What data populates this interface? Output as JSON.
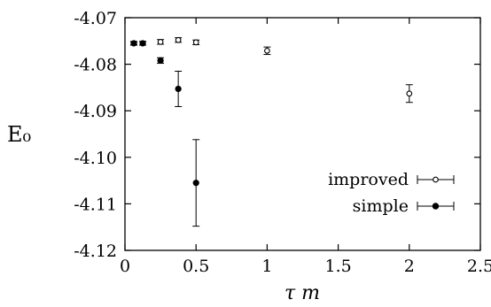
{
  "chart_data": {
    "type": "scatter",
    "xlabel": "τ m",
    "ylabel": "E₀",
    "xlim": [
      0,
      2.5
    ],
    "ylim": [
      -4.12,
      -4.07
    ],
    "x_ticks": [
      0,
      0.5,
      1,
      1.5,
      2,
      2.5
    ],
    "x_tick_labels": [
      "0",
      "0.5",
      "1",
      "1.5",
      "2",
      "2.5"
    ],
    "y_ticks": [
      -4.07,
      -4.08,
      -4.09,
      -4.1,
      -4.11,
      -4.12
    ],
    "y_tick_labels": [
      "-4.07",
      "-4.08",
      "-4.09",
      "-4.10",
      "-4.11",
      "-4.12"
    ],
    "grid": false,
    "legend_position": "bottom-right",
    "series": [
      {
        "name": "improved",
        "marker": "open-circle",
        "points": [
          {
            "x": 0.0625,
            "y": -4.0755,
            "err": 0.0004
          },
          {
            "x": 0.125,
            "y": -4.0755,
            "err": 0.0004
          },
          {
            "x": 0.25,
            "y": -4.0752,
            "err": 0.0005
          },
          {
            "x": 0.375,
            "y": -4.0748,
            "err": 0.0005
          },
          {
            "x": 0.5,
            "y": -4.0753,
            "err": 0.0005
          },
          {
            "x": 1.0,
            "y": -4.0771,
            "err": 0.0008
          },
          {
            "x": 2.0,
            "y": -4.0863,
            "err": 0.0019
          }
        ]
      },
      {
        "name": "simple",
        "marker": "filled-circle",
        "points": [
          {
            "x": 0.0625,
            "y": -4.0755,
            "err": 0.0003
          },
          {
            "x": 0.125,
            "y": -4.0755,
            "err": 0.0004
          },
          {
            "x": 0.25,
            "y": -4.0792,
            "err": 0.0006
          },
          {
            "x": 0.375,
            "y": -4.0853,
            "err": 0.0038
          },
          {
            "x": 0.5,
            "y": -4.1055,
            "err": 0.0093
          }
        ]
      }
    ]
  }
}
